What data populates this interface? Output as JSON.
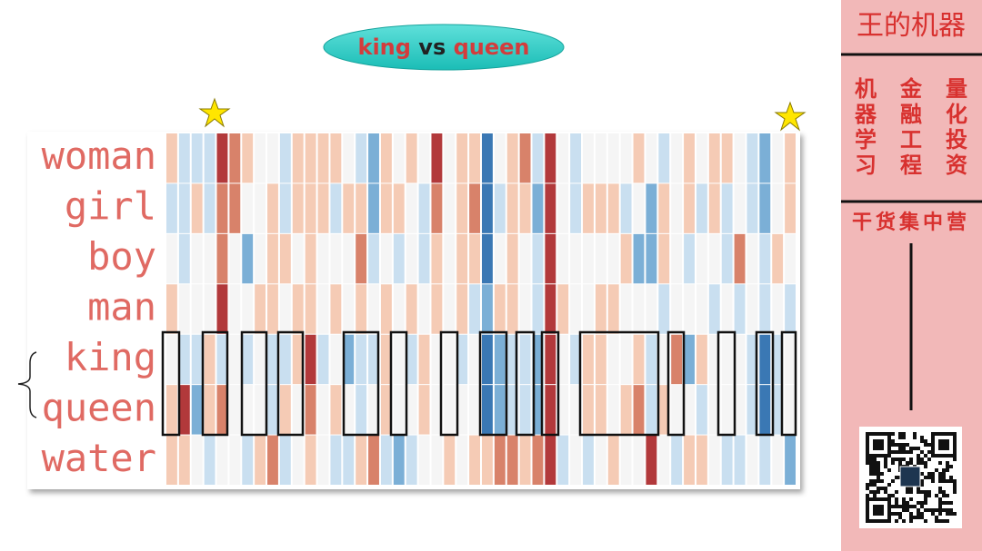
{
  "header": {
    "left": "king",
    "middle": "vs",
    "right": "queen"
  },
  "sidebar": {
    "brand": "王的机器",
    "columns": [
      "机器学习",
      "金融工程",
      "量化投资"
    ],
    "slogan": "干货集中营"
  },
  "chart_data": {
    "type": "heatmap",
    "rows": [
      "woman",
      "girl",
      "boy",
      "man",
      "king",
      "queen",
      "water"
    ],
    "vlim": [
      -3,
      3
    ],
    "color_scale": [
      "#3a78b4",
      "#7bafd6",
      "#c9dff0",
      "#f5f5f5",
      "#f5cbb5",
      "#d8826a",
      "#b2393b"
    ],
    "values": [
      [
        1,
        -1,
        -1,
        -1,
        3,
        2,
        1,
        0,
        0,
        -1,
        1,
        1,
        1,
        1,
        0,
        -1,
        -2,
        1,
        0,
        1,
        0,
        3,
        0,
        1,
        1,
        -3,
        0,
        1,
        2,
        -1,
        3,
        0,
        -1,
        0,
        0,
        0,
        0,
        1,
        0,
        -1,
        0,
        1,
        0,
        1,
        1,
        0,
        -1,
        -2,
        0,
        1
      ],
      [
        -1,
        -1,
        1,
        -1,
        2,
        2,
        0,
        0,
        1,
        -1,
        1,
        1,
        1,
        -1,
        1,
        1,
        -2,
        1,
        1,
        0,
        -1,
        2,
        0,
        1,
        2,
        -3,
        -1,
        1,
        1,
        -2,
        3,
        0,
        -1,
        1,
        1,
        1,
        -1,
        0,
        -2,
        1,
        0,
        1,
        -1,
        1,
        -1,
        0,
        -1,
        -2,
        0,
        1
      ],
      [
        0,
        -1,
        0,
        0,
        2,
        0,
        -2,
        0,
        1,
        1,
        0,
        1,
        0,
        0,
        0,
        2,
        -1,
        0,
        -1,
        0,
        -1,
        1,
        0,
        1,
        1,
        -3,
        0,
        1,
        0,
        -1,
        3,
        0,
        0,
        0,
        0,
        0,
        1,
        -2,
        -2,
        1,
        0,
        -1,
        0,
        0,
        -1,
        2,
        0,
        -1,
        1,
        0
      ],
      [
        1,
        0,
        0,
        0,
        3,
        0,
        0,
        1,
        1,
        0,
        1,
        1,
        0,
        1,
        0,
        1,
        0,
        1,
        0,
        1,
        0,
        1,
        0,
        1,
        -1,
        -2,
        1,
        1,
        0,
        -1,
        3,
        1,
        0,
        0,
        1,
        1,
        0,
        0,
        0,
        -1,
        0,
        0,
        0,
        -1,
        0,
        -1,
        0,
        -1,
        0,
        -1
      ],
      [
        0,
        -1,
        -1,
        1,
        -1,
        0,
        -1,
        0,
        -1,
        -1,
        1,
        3,
        -1,
        0,
        -2,
        -1,
        -1,
        1,
        0,
        -1,
        1,
        0,
        0,
        -1,
        0,
        -3,
        -2,
        -1,
        -1,
        -2,
        3,
        0,
        -1,
        1,
        1,
        0,
        0,
        1,
        -1,
        0,
        2,
        -2,
        1,
        0,
        0,
        0,
        -1,
        -3,
        -1,
        0
      ],
      [
        1,
        3,
        -2,
        1,
        2,
        0,
        0,
        0,
        -1,
        1,
        0,
        2,
        0,
        1,
        0,
        -1,
        0,
        1,
        0,
        0,
        1,
        0,
        0,
        0,
        0,
        -3,
        -2,
        -1,
        -1,
        -2,
        3,
        0,
        0,
        1,
        1,
        0,
        1,
        2,
        -1,
        1,
        0,
        0,
        -1,
        0,
        0,
        0,
        -1,
        -3,
        -1,
        0
      ],
      [
        1,
        1,
        0,
        -1,
        0,
        0,
        -1,
        1,
        2,
        -1,
        0,
        1,
        0,
        -1,
        -1,
        1,
        2,
        -1,
        -2,
        -1,
        0,
        0,
        1,
        0,
        1,
        1,
        2,
        2,
        1,
        2,
        3,
        -1,
        0,
        -1,
        0,
        1,
        0,
        0,
        3,
        0,
        -1,
        1,
        1,
        0,
        -1,
        -1,
        0,
        -1,
        0,
        -2
      ]
    ]
  }
}
